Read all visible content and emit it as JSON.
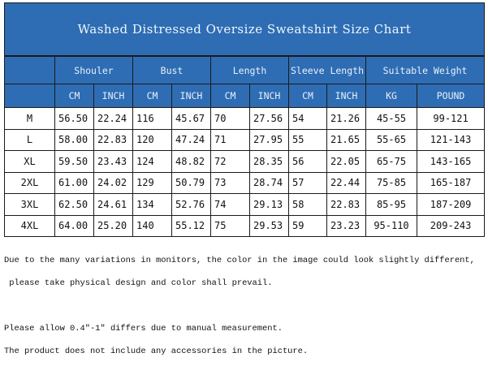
{
  "title": "Washed Distressed Oversize Sweatshirt Size Chart",
  "groups": [
    "Shouler",
    "Bust",
    "Length",
    "Sleeve Length",
    "Suitable Weight"
  ],
  "units": [
    "CM",
    "INCH",
    "CM",
    "INCH",
    "CM",
    "INCH",
    "CM",
    "INCH",
    "KG",
    "POUND"
  ],
  "rows": [
    [
      "M",
      "56.50",
      "22.24",
      "116",
      "45.67",
      "70",
      "27.56",
      "54",
      "21.26",
      "45-55",
      "99-121"
    ],
    [
      "L",
      "58.00",
      "22.83",
      "120",
      "47.24",
      "71",
      "27.95",
      "55",
      "21.65",
      "55-65",
      "121-143"
    ],
    [
      "XL",
      "59.50",
      "23.43",
      "124",
      "48.82",
      "72",
      "28.35",
      "56",
      "22.05",
      "65-75",
      "143-165"
    ],
    [
      "2XL",
      "61.00",
      "24.02",
      "129",
      "50.79",
      "73",
      "28.74",
      "57",
      "22.44",
      "75-85",
      "165-187"
    ],
    [
      "3XL",
      "62.50",
      "24.61",
      "134",
      "52.76",
      "74",
      "29.13",
      "58",
      "22.83",
      "85-95",
      "187-209"
    ],
    [
      "4XL",
      "64.00",
      "25.20",
      "140",
      "55.12",
      "75",
      "29.53",
      "59",
      "23.23",
      "95-110",
      "209-243"
    ]
  ],
  "notes": [
    "Due to the many variations in monitors, the color in the image could look slightly different,",
    " please take physical design and color shall prevail.",
    "Please allow 0.4\"-1\" differs due to manual measurement.",
    "The product does not include any accessories in the picture."
  ],
  "colors": {
    "header": "#2e6db4"
  }
}
